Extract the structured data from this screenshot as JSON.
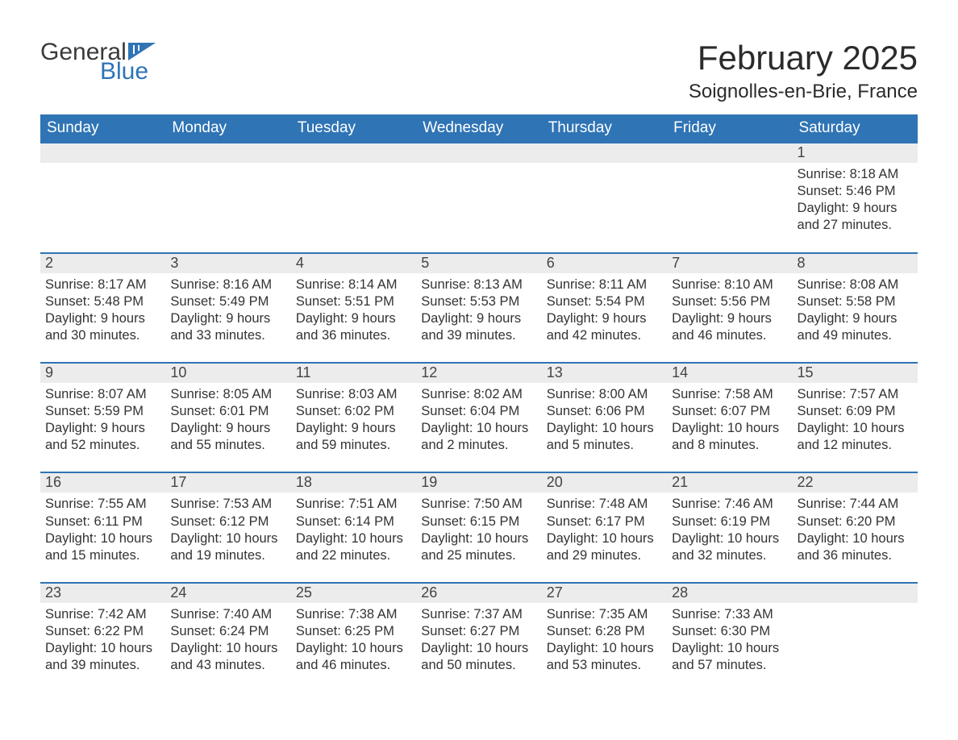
{
  "brand": {
    "word1": "General",
    "word2": "Blue",
    "colors": {
      "word1": "#3a3a3a",
      "word2": "#2f74b5",
      "flag": "#2f74b5"
    }
  },
  "title": "February 2025",
  "location": "Soignolles-en-Brie, France",
  "colors": {
    "header_bg": "#2f74b5",
    "header_text": "#ffffff",
    "daynum_bg": "#ececec",
    "divider": "#2f74b5",
    "page_bg": "#ffffff",
    "body_text": "#333333"
  },
  "days_of_week": [
    "Sunday",
    "Monday",
    "Tuesday",
    "Wednesday",
    "Thursday",
    "Friday",
    "Saturday"
  ],
  "weeks": [
    {
      "days": [
        {
          "num": "",
          "sunrise": "",
          "sunset": "",
          "daylight": ""
        },
        {
          "num": "",
          "sunrise": "",
          "sunset": "",
          "daylight": ""
        },
        {
          "num": "",
          "sunrise": "",
          "sunset": "",
          "daylight": ""
        },
        {
          "num": "",
          "sunrise": "",
          "sunset": "",
          "daylight": ""
        },
        {
          "num": "",
          "sunrise": "",
          "sunset": "",
          "daylight": ""
        },
        {
          "num": "",
          "sunrise": "",
          "sunset": "",
          "daylight": ""
        },
        {
          "num": "1",
          "sunrise": "Sunrise: 8:18 AM",
          "sunset": "Sunset: 5:46 PM",
          "daylight": "Daylight: 9 hours and 27 minutes."
        }
      ]
    },
    {
      "days": [
        {
          "num": "2",
          "sunrise": "Sunrise: 8:17 AM",
          "sunset": "Sunset: 5:48 PM",
          "daylight": "Daylight: 9 hours and 30 minutes."
        },
        {
          "num": "3",
          "sunrise": "Sunrise: 8:16 AM",
          "sunset": "Sunset: 5:49 PM",
          "daylight": "Daylight: 9 hours and 33 minutes."
        },
        {
          "num": "4",
          "sunrise": "Sunrise: 8:14 AM",
          "sunset": "Sunset: 5:51 PM",
          "daylight": "Daylight: 9 hours and 36 minutes."
        },
        {
          "num": "5",
          "sunrise": "Sunrise: 8:13 AM",
          "sunset": "Sunset: 5:53 PM",
          "daylight": "Daylight: 9 hours and 39 minutes."
        },
        {
          "num": "6",
          "sunrise": "Sunrise: 8:11 AM",
          "sunset": "Sunset: 5:54 PM",
          "daylight": "Daylight: 9 hours and 42 minutes."
        },
        {
          "num": "7",
          "sunrise": "Sunrise: 8:10 AM",
          "sunset": "Sunset: 5:56 PM",
          "daylight": "Daylight: 9 hours and 46 minutes."
        },
        {
          "num": "8",
          "sunrise": "Sunrise: 8:08 AM",
          "sunset": "Sunset: 5:58 PM",
          "daylight": "Daylight: 9 hours and 49 minutes."
        }
      ]
    },
    {
      "days": [
        {
          "num": "9",
          "sunrise": "Sunrise: 8:07 AM",
          "sunset": "Sunset: 5:59 PM",
          "daylight": "Daylight: 9 hours and 52 minutes."
        },
        {
          "num": "10",
          "sunrise": "Sunrise: 8:05 AM",
          "sunset": "Sunset: 6:01 PM",
          "daylight": "Daylight: 9 hours and 55 minutes."
        },
        {
          "num": "11",
          "sunrise": "Sunrise: 8:03 AM",
          "sunset": "Sunset: 6:02 PM",
          "daylight": "Daylight: 9 hours and 59 minutes."
        },
        {
          "num": "12",
          "sunrise": "Sunrise: 8:02 AM",
          "sunset": "Sunset: 6:04 PM",
          "daylight": "Daylight: 10 hours and 2 minutes."
        },
        {
          "num": "13",
          "sunrise": "Sunrise: 8:00 AM",
          "sunset": "Sunset: 6:06 PM",
          "daylight": "Daylight: 10 hours and 5 minutes."
        },
        {
          "num": "14",
          "sunrise": "Sunrise: 7:58 AM",
          "sunset": "Sunset: 6:07 PM",
          "daylight": "Daylight: 10 hours and 8 minutes."
        },
        {
          "num": "15",
          "sunrise": "Sunrise: 7:57 AM",
          "sunset": "Sunset: 6:09 PM",
          "daylight": "Daylight: 10 hours and 12 minutes."
        }
      ]
    },
    {
      "days": [
        {
          "num": "16",
          "sunrise": "Sunrise: 7:55 AM",
          "sunset": "Sunset: 6:11 PM",
          "daylight": "Daylight: 10 hours and 15 minutes."
        },
        {
          "num": "17",
          "sunrise": "Sunrise: 7:53 AM",
          "sunset": "Sunset: 6:12 PM",
          "daylight": "Daylight: 10 hours and 19 minutes."
        },
        {
          "num": "18",
          "sunrise": "Sunrise: 7:51 AM",
          "sunset": "Sunset: 6:14 PM",
          "daylight": "Daylight: 10 hours and 22 minutes."
        },
        {
          "num": "19",
          "sunrise": "Sunrise: 7:50 AM",
          "sunset": "Sunset: 6:15 PM",
          "daylight": "Daylight: 10 hours and 25 minutes."
        },
        {
          "num": "20",
          "sunrise": "Sunrise: 7:48 AM",
          "sunset": "Sunset: 6:17 PM",
          "daylight": "Daylight: 10 hours and 29 minutes."
        },
        {
          "num": "21",
          "sunrise": "Sunrise: 7:46 AM",
          "sunset": "Sunset: 6:19 PM",
          "daylight": "Daylight: 10 hours and 32 minutes."
        },
        {
          "num": "22",
          "sunrise": "Sunrise: 7:44 AM",
          "sunset": "Sunset: 6:20 PM",
          "daylight": "Daylight: 10 hours and 36 minutes."
        }
      ]
    },
    {
      "days": [
        {
          "num": "23",
          "sunrise": "Sunrise: 7:42 AM",
          "sunset": "Sunset: 6:22 PM",
          "daylight": "Daylight: 10 hours and 39 minutes."
        },
        {
          "num": "24",
          "sunrise": "Sunrise: 7:40 AM",
          "sunset": "Sunset: 6:24 PM",
          "daylight": "Daylight: 10 hours and 43 minutes."
        },
        {
          "num": "25",
          "sunrise": "Sunrise: 7:38 AM",
          "sunset": "Sunset: 6:25 PM",
          "daylight": "Daylight: 10 hours and 46 minutes."
        },
        {
          "num": "26",
          "sunrise": "Sunrise: 7:37 AM",
          "sunset": "Sunset: 6:27 PM",
          "daylight": "Daylight: 10 hours and 50 minutes."
        },
        {
          "num": "27",
          "sunrise": "Sunrise: 7:35 AM",
          "sunset": "Sunset: 6:28 PM",
          "daylight": "Daylight: 10 hours and 53 minutes."
        },
        {
          "num": "28",
          "sunrise": "Sunrise: 7:33 AM",
          "sunset": "Sunset: 6:30 PM",
          "daylight": "Daylight: 10 hours and 57 minutes."
        },
        {
          "num": "",
          "sunrise": "",
          "sunset": "",
          "daylight": ""
        }
      ]
    }
  ]
}
